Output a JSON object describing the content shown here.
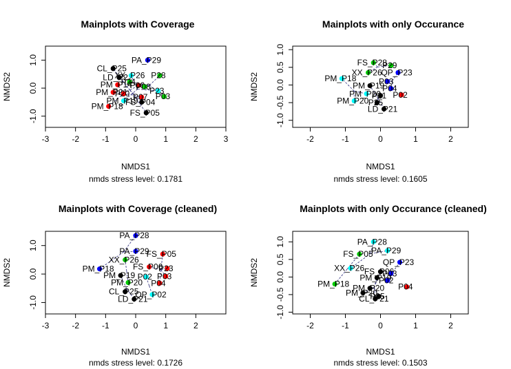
{
  "chart_data": [
    {
      "type": "scatter",
      "title": "Mainplots with Coverage",
      "xlabel": "NMDS1",
      "ylabel": "NMDS2",
      "stress_label": "nmds stress level: 0.1781",
      "xlim": [
        -3,
        3
      ],
      "ylim": [
        -1.4,
        1.5
      ],
      "xticks": [
        -3,
        -2,
        -1,
        0,
        1,
        2,
        3
      ],
      "yticks": [
        -1.0,
        0.0,
        1.0
      ],
      "points": [
        {
          "x": 0.4,
          "y": 1.0,
          "color": "#0000ff",
          "label": "PA_P29"
        },
        {
          "x": -0.75,
          "y": 0.7,
          "color": "#000000",
          "label": "CL_P25"
        },
        {
          "x": -0.55,
          "y": 0.38,
          "color": "#000000",
          "label": "LD_P22"
        },
        {
          "x": -0.15,
          "y": 0.45,
          "color": "#00ffff",
          "label": "XX_P26"
        },
        {
          "x": 0.8,
          "y": 0.45,
          "color": "#00cc00",
          "label": "P28"
        },
        {
          "x": -0.2,
          "y": 0.22,
          "color": "#00cc00",
          "label": "P24"
        },
        {
          "x": -0.6,
          "y": 0.12,
          "color": "#ff0000",
          "label": "PM_P14"
        },
        {
          "x": 0.1,
          "y": 0.1,
          "color": "#ff0000",
          "label": "P06"
        },
        {
          "x": 0.3,
          "y": 0.05,
          "color": "#00cc00",
          "label": "P08"
        },
        {
          "x": 0.75,
          "y": -0.1,
          "color": "#00ffff",
          "label": "P23"
        },
        {
          "x": -0.75,
          "y": -0.15,
          "color": "#ff0000",
          "label": "PM_P21"
        },
        {
          "x": -0.4,
          "y": -0.2,
          "color": "#ff0000",
          "label": "P20"
        },
        {
          "x": 0.95,
          "y": -0.3,
          "color": "#00cc00",
          "label": "P03"
        },
        {
          "x": 0.2,
          "y": -0.32,
          "color": "#ff0000",
          "label": "P07"
        },
        {
          "x": -0.4,
          "y": -0.45,
          "color": "#00ffff",
          "label": "PM_P19"
        },
        {
          "x": 0.2,
          "y": -0.5,
          "color": "#000000",
          "label": "FS_P04"
        },
        {
          "x": -0.9,
          "y": -0.65,
          "color": "#ff0000",
          "label": "PM_P18"
        },
        {
          "x": 0.35,
          "y": -0.88,
          "color": "#000000",
          "label": "FS_P05"
        }
      ]
    },
    {
      "type": "scatter",
      "title": "Mainplots with only Occurance",
      "xlabel": "NMDS1",
      "ylabel": "NMDS2",
      "stress_label": "nmds stress level: 0.1605",
      "xlim": [
        -2.5,
        2.5
      ],
      "ylim": [
        -1.2,
        1.1
      ],
      "xticks": [
        -2,
        -1,
        0,
        1,
        2
      ],
      "yticks": [
        -1.0,
        -0.5,
        0.0,
        0.5,
        1.0
      ],
      "points": [
        {
          "x": -0.2,
          "y": 0.63,
          "color": "#00cc00",
          "label": "FS_P28"
        },
        {
          "x": 0.3,
          "y": 0.55,
          "color": "#00cc00",
          "label": "P29"
        },
        {
          "x": -0.35,
          "y": 0.35,
          "color": "#00cc00",
          "label": "XX_P26"
        },
        {
          "x": 0.5,
          "y": 0.35,
          "color": "#0000ff",
          "label": "QP_P23"
        },
        {
          "x": -1.1,
          "y": 0.18,
          "color": "#00ffff",
          "label": "PM_P18"
        },
        {
          "x": 0.2,
          "y": 0.1,
          "color": "#0000ff",
          "label": "P03"
        },
        {
          "x": -0.3,
          "y": -0.02,
          "color": "#000000",
          "label": "PM_P19"
        },
        {
          "x": 0.3,
          "y": -0.1,
          "color": "#0000ff",
          "label": "P04"
        },
        {
          "x": -0.4,
          "y": -0.25,
          "color": "#00ffff",
          "label": "PM_P20"
        },
        {
          "x": 0.0,
          "y": -0.3,
          "color": "#000000",
          "label": "P21"
        },
        {
          "x": 0.6,
          "y": -0.28,
          "color": "#ff0000",
          "label": "P02"
        },
        {
          "x": -0.75,
          "y": -0.45,
          "color": "#00ffff",
          "label": "PM_P20"
        },
        {
          "x": -0.1,
          "y": -0.5,
          "color": "#000000",
          "label": "P25"
        },
        {
          "x": 0.1,
          "y": -0.68,
          "color": "#000000",
          "label": "LD_P21"
        }
      ]
    },
    {
      "type": "scatter",
      "title": "Mainplots with Coverage (cleaned)",
      "xlabel": "NMDS1",
      "ylabel": "NMDS2",
      "stress_label": "nmds stress level: 0.1726",
      "xlim": [
        -3,
        3
      ],
      "ylim": [
        -1.4,
        1.5
      ],
      "xticks": [
        -3,
        -2,
        -1,
        0,
        1,
        2
      ],
      "yticks": [
        -1.0,
        0.0,
        1.0
      ],
      "points": [
        {
          "x": 0.0,
          "y": 1.35,
          "color": "#0000ff",
          "label": "PA_P28"
        },
        {
          "x": 0.0,
          "y": 0.8,
          "color": "#0000ff",
          "label": "PA_P29"
        },
        {
          "x": 0.9,
          "y": 0.7,
          "color": "#ff0000",
          "label": "FS_P05"
        },
        {
          "x": -0.35,
          "y": 0.5,
          "color": "#00cc00",
          "label": "XX_P26"
        },
        {
          "x": -1.2,
          "y": 0.18,
          "color": "#0000ff",
          "label": "PM_P18"
        },
        {
          "x": 0.45,
          "y": 0.25,
          "color": "#ff0000",
          "label": "FS_P06"
        },
        {
          "x": 1.05,
          "y": 0.2,
          "color": "#ff0000",
          "label": "P23"
        },
        {
          "x": 1.0,
          "y": -0.08,
          "color": "#ff0000",
          "label": "P03"
        },
        {
          "x": -0.5,
          "y": -0.05,
          "color": "#000000",
          "label": "PM_P19"
        },
        {
          "x": 0.35,
          "y": -0.1,
          "color": "#00ffff",
          "label": "P02"
        },
        {
          "x": -0.25,
          "y": -0.3,
          "color": "#00cc00",
          "label": "PM_P20"
        },
        {
          "x": 0.8,
          "y": -0.32,
          "color": "#ff0000",
          "label": "P04"
        },
        {
          "x": -0.35,
          "y": -0.62,
          "color": "#000000",
          "label": "CL_P25"
        },
        {
          "x": 0.55,
          "y": -0.72,
          "color": "#00ffff",
          "label": "QP_P02"
        },
        {
          "x": -0.05,
          "y": -0.88,
          "color": "#000000",
          "label": "LD_P21"
        }
      ]
    },
    {
      "type": "scatter",
      "title": "Mainplots with only Occurance (cleaned)",
      "xlabel": "NMDS1",
      "ylabel": "NMDS2",
      "stress_label": "nmds stress level: 0.1503",
      "xlim": [
        -2.5,
        2.5
      ],
      "ylim": [
        -1.05,
        1.3
      ],
      "xticks": [
        -2,
        -1,
        0,
        1,
        2
      ],
      "yticks": [
        -1.0,
        -0.5,
        0.0,
        0.5,
        1.0
      ],
      "points": [
        {
          "x": -0.2,
          "y": 1.0,
          "color": "#00ffff",
          "label": "PA_P28"
        },
        {
          "x": 0.2,
          "y": 0.75,
          "color": "#00ffff",
          "label": "PA_P29"
        },
        {
          "x": -0.6,
          "y": 0.65,
          "color": "#00cc00",
          "label": "FS_P05"
        },
        {
          "x": 0.55,
          "y": 0.42,
          "color": "#0000ff",
          "label": "QP_P23"
        },
        {
          "x": -0.85,
          "y": 0.25,
          "color": "#00ffff",
          "label": "XX_P26"
        },
        {
          "x": 0.0,
          "y": 0.15,
          "color": "#000000",
          "label": "FS_P06"
        },
        {
          "x": 0.3,
          "y": 0.1,
          "color": "#0000ff",
          "label": "P03"
        },
        {
          "x": -0.1,
          "y": -0.02,
          "color": "#000000",
          "label": "PM_P19"
        },
        {
          "x": 0.2,
          "y": -0.1,
          "color": "#0000ff",
          "label": "P02"
        },
        {
          "x": -1.3,
          "y": -0.2,
          "color": "#00cc00",
          "label": "PM_P18"
        },
        {
          "x": 0.75,
          "y": -0.28,
          "color": "#ff0000",
          "label": "P04"
        },
        {
          "x": -0.3,
          "y": -0.32,
          "color": "#000000",
          "label": "PM_P20"
        },
        {
          "x": -0.5,
          "y": -0.45,
          "color": "#000000",
          "label": "PM_P20"
        },
        {
          "x": -0.05,
          "y": -0.55,
          "color": "#000000",
          "label": "P25"
        },
        {
          "x": -0.15,
          "y": -0.62,
          "color": "#000000",
          "label": "CL_P21"
        }
      ]
    }
  ]
}
